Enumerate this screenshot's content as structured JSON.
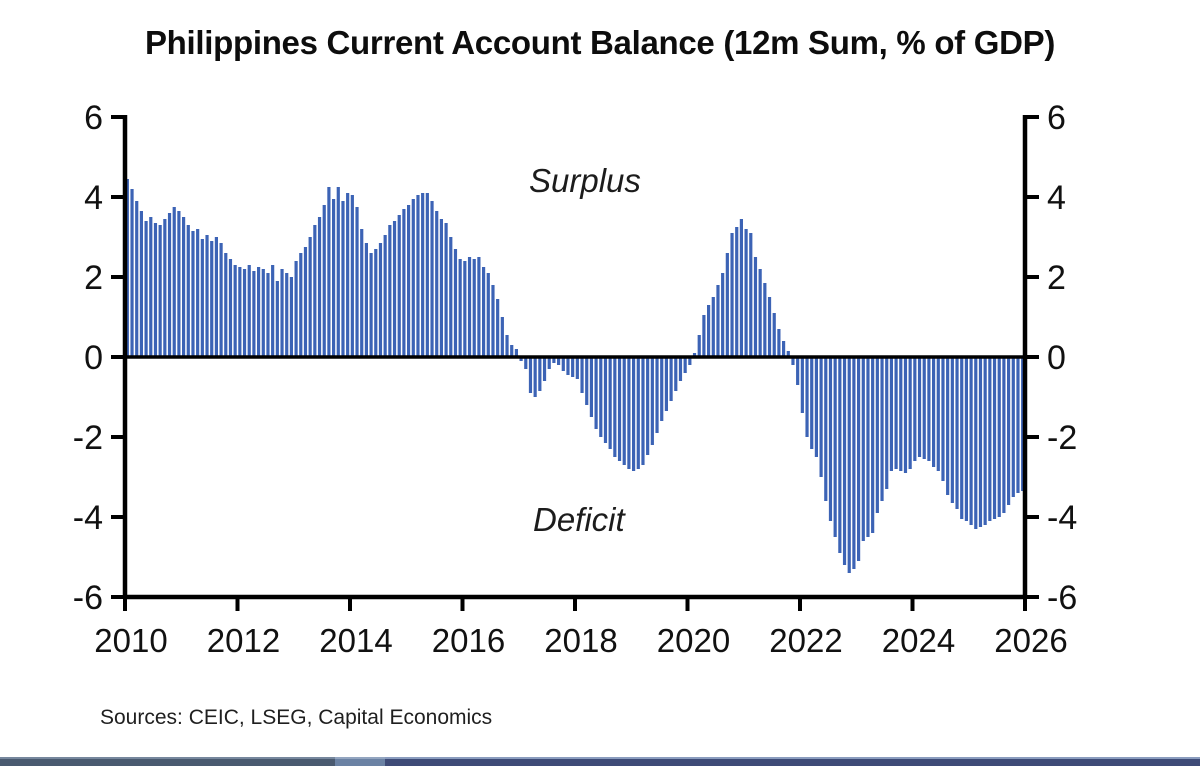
{
  "chart_data": {
    "type": "bar",
    "title": "Philippines Current Account Balance (12m Sum, % of GDP)",
    "series_name": "Current account balance, 12m sum, % of GDP",
    "frequency": "monthly",
    "start": "2010-01",
    "end": "2025-12",
    "ylim": [
      -6,
      6
    ],
    "grid": false,
    "legend": "none",
    "bar_color": "#3C63B5",
    "axis_color": "#000000",
    "y_tick_labels": [
      "6",
      "4",
      "2",
      "0",
      "-2",
      "-4",
      "-6"
    ],
    "x_tick_labels": [
      "2010",
      "2012",
      "2014",
      "2016",
      "2018",
      "2020",
      "2022",
      "2024",
      "2026"
    ],
    "annotations": {
      "surplus": "Surplus",
      "deficit": "Deficit"
    },
    "values": [
      4.45,
      4.2,
      3.9,
      3.65,
      3.4,
      3.5,
      3.35,
      3.3,
      3.45,
      3.6,
      3.75,
      3.65,
      3.5,
      3.3,
      3.15,
      3.2,
      2.95,
      3.05,
      2.9,
      3.0,
      2.85,
      2.6,
      2.45,
      2.3,
      2.25,
      2.2,
      2.3,
      2.15,
      2.25,
      2.2,
      2.1,
      2.3,
      1.9,
      2.2,
      2.1,
      2.0,
      2.4,
      2.6,
      2.75,
      3.0,
      3.3,
      3.5,
      3.8,
      4.25,
      3.95,
      4.25,
      3.9,
      4.1,
      4.05,
      3.75,
      3.2,
      2.85,
      2.6,
      2.7,
      2.85,
      3.05,
      3.3,
      3.4,
      3.55,
      3.7,
      3.8,
      3.95,
      4.05,
      4.1,
      4.1,
      3.9,
      3.65,
      3.45,
      3.35,
      3.0,
      2.7,
      2.45,
      2.4,
      2.5,
      2.45,
      2.5,
      2.25,
      2.1,
      1.8,
      1.45,
      1.0,
      0.55,
      0.3,
      0.2,
      -0.1,
      -0.3,
      -0.9,
      -1.0,
      -0.85,
      -0.6,
      -0.3,
      -0.15,
      -0.2,
      -0.35,
      -0.45,
      -0.5,
      -0.55,
      -0.9,
      -1.2,
      -1.5,
      -1.8,
      -2.0,
      -2.15,
      -2.3,
      -2.5,
      -2.6,
      -2.7,
      -2.8,
      -2.85,
      -2.8,
      -2.7,
      -2.45,
      -2.2,
      -1.9,
      -1.6,
      -1.35,
      -1.1,
      -0.85,
      -0.6,
      -0.4,
      -0.2,
      0.1,
      0.55,
      1.05,
      1.3,
      1.5,
      1.8,
      2.1,
      2.6,
      3.1,
      3.25,
      3.45,
      3.2,
      3.1,
      2.5,
      2.2,
      1.85,
      1.5,
      1.1,
      0.7,
      0.4,
      0.15,
      -0.2,
      -0.7,
      -1.4,
      -2.0,
      -2.3,
      -2.5,
      -3.0,
      -3.6,
      -4.1,
      -4.5,
      -4.9,
      -5.2,
      -5.4,
      -5.3,
      -5.1,
      -4.6,
      -4.5,
      -4.4,
      -3.9,
      -3.6,
      -3.3,
      -2.85,
      -2.8,
      -2.85,
      -2.9,
      -2.8,
      -2.6,
      -2.5,
      -2.55,
      -2.6,
      -2.75,
      -2.85,
      -3.1,
      -3.45,
      -3.65,
      -3.8,
      -4.05,
      -4.1,
      -4.2,
      -4.3,
      -4.25,
      -4.2,
      -4.1,
      -4.05,
      -4.0,
      -3.9,
      -3.7,
      -3.5,
      -3.4,
      -3.35
    ]
  },
  "footer": {
    "sources": "Sources: CEIC, LSEG, Capital Economics"
  },
  "bottom_bar": {
    "segment_colors": [
      "#4a5a70",
      "#6b82a4",
      "#3e4b77"
    ]
  }
}
